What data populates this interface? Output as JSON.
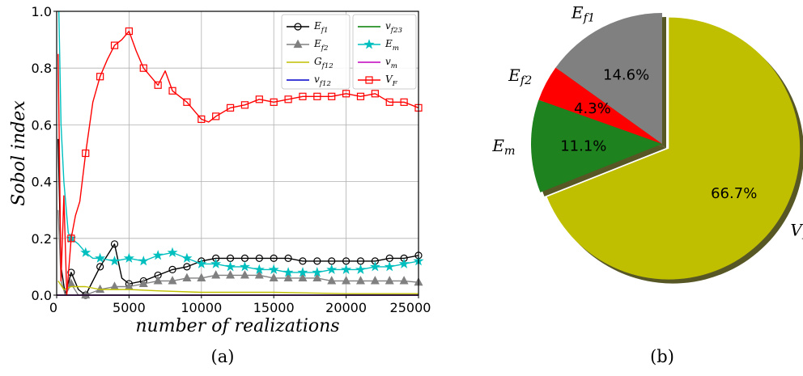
{
  "chart_data": [
    {
      "type": "line",
      "subtitle": "(a)",
      "xlabel": "number of realizations",
      "ylabel": "Sobol index",
      "xlim": [
        0,
        25000
      ],
      "ylim": [
        0,
        1
      ],
      "xticks": [
        "0",
        "5000",
        "10000",
        "15000",
        "20000",
        "25000"
      ],
      "yticks": [
        "0.0",
        "0.2",
        "0.4",
        "0.6",
        "0.8",
        "1.0"
      ],
      "grid": true,
      "legend_position": "top-right",
      "series": [
        {
          "name": "E_f1",
          "label_main": "E",
          "label_sub": "f1",
          "color": "#000000",
          "marker": "circle",
          "x": [
            100,
            300,
            600,
            1000,
            1500,
            2000,
            3000,
            3500,
            4000,
            4500,
            5000,
            6000,
            7000,
            8000,
            9000,
            10000,
            11000,
            12000,
            13000,
            14000,
            15000,
            16000,
            17000,
            18000,
            19000,
            20000,
            21000,
            22000,
            23000,
            24000,
            25000
          ],
          "y": [
            0.55,
            0.1,
            0.0,
            0.08,
            0.02,
            0.0,
            0.1,
            0.14,
            0.18,
            0.06,
            0.04,
            0.05,
            0.07,
            0.09,
            0.1,
            0.12,
            0.13,
            0.13,
            0.13,
            0.13,
            0.13,
            0.13,
            0.12,
            0.12,
            0.12,
            0.12,
            0.12,
            0.12,
            0.13,
            0.13,
            0.14
          ]
        },
        {
          "name": "E_f2",
          "label_main": "E",
          "label_sub": "f2",
          "color": "#808080",
          "marker": "triangle",
          "x": [
            100,
            300,
            600,
            1000,
            1500,
            2000,
            3000,
            4000,
            5000,
            6000,
            7000,
            8000,
            9000,
            10000,
            11000,
            12000,
            13000,
            14000,
            15000,
            16000,
            17000,
            18000,
            19000,
            20000,
            21000,
            22000,
            23000,
            24000,
            25000
          ],
          "y": [
            0.3,
            0.05,
            0.0,
            0.04,
            0.0,
            0.0,
            0.02,
            0.03,
            0.03,
            0.04,
            0.05,
            0.05,
            0.06,
            0.06,
            0.07,
            0.07,
            0.07,
            0.07,
            0.06,
            0.06,
            0.06,
            0.06,
            0.05,
            0.05,
            0.05,
            0.05,
            0.05,
            0.05,
            0.045
          ]
        },
        {
          "name": "G_f12",
          "label_main": "G",
          "label_sub": "f12",
          "color": "#bfbf00",
          "marker": "none",
          "x": [
            100,
            500,
            1000,
            2000,
            3000,
            4000,
            5000,
            7000,
            10000,
            15000,
            20000,
            25000
          ],
          "y": [
            0.05,
            0.02,
            0.03,
            0.03,
            0.02,
            0.02,
            0.02,
            0.015,
            0.01,
            0.01,
            0.005,
            0.005
          ]
        },
        {
          "name": "v_f12",
          "label_main": "v",
          "label_sub": "f12",
          "color": "#0000cc",
          "marker": "none",
          "x": [
            0,
            25000
          ],
          "y": [
            0.0,
            0.0
          ]
        },
        {
          "name": "v_f23",
          "label_main": "v",
          "label_sub": "f23",
          "color": "#007f00",
          "marker": "none",
          "x": [
            0,
            25000
          ],
          "y": [
            0.0,
            0.0
          ]
        },
        {
          "name": "E_m",
          "label_main": "E",
          "label_sub": "m",
          "color": "#00bfbf",
          "marker": "star",
          "x": [
            150,
            300,
            500,
            800,
            1000,
            1500,
            2000,
            2500,
            3000,
            4000,
            5000,
            6000,
            7000,
            8000,
            9000,
            10000,
            11000,
            12000,
            13000,
            14000,
            15000,
            16000,
            17000,
            18000,
            19000,
            20000,
            21000,
            22000,
            23000,
            24000,
            25000
          ],
          "y": [
            1.0,
            0.6,
            0.4,
            0.22,
            0.2,
            0.18,
            0.15,
            0.13,
            0.13,
            0.12,
            0.13,
            0.12,
            0.14,
            0.15,
            0.13,
            0.11,
            0.11,
            0.1,
            0.1,
            0.09,
            0.09,
            0.08,
            0.08,
            0.08,
            0.09,
            0.09,
            0.09,
            0.1,
            0.1,
            0.11,
            0.12
          ]
        },
        {
          "name": "v_m",
          "label_main": "v",
          "label_sub": "m",
          "color": "#bf00bf",
          "marker": "none",
          "x": [
            0,
            25000
          ],
          "y": [
            0.0,
            0.0
          ]
        },
        {
          "name": "V_F",
          "label_main": "V",
          "label_sub": "F",
          "color": "#ff0000",
          "marker": "square",
          "x": [
            100,
            300,
            500,
            700,
            1000,
            1300,
            1600,
            2000,
            2500,
            3000,
            3500,
            4000,
            4500,
            5000,
            5500,
            6000,
            7000,
            7500,
            8000,
            9000,
            10000,
            10500,
            11000,
            12000,
            13000,
            14000,
            15000,
            16000,
            17000,
            18000,
            19000,
            20000,
            21000,
            22000,
            23000,
            24000,
            25000
          ],
          "y": [
            0.85,
            0.05,
            0.35,
            0.0,
            0.2,
            0.28,
            0.33,
            0.5,
            0.68,
            0.77,
            0.83,
            0.88,
            0.9,
            0.93,
            0.86,
            0.8,
            0.74,
            0.79,
            0.72,
            0.68,
            0.62,
            0.61,
            0.63,
            0.66,
            0.67,
            0.69,
            0.68,
            0.69,
            0.7,
            0.7,
            0.7,
            0.71,
            0.7,
            0.71,
            0.68,
            0.68,
            0.66
          ]
        }
      ]
    },
    {
      "type": "pie",
      "subtitle": "(b)",
      "slices": [
        {
          "label_main": "E",
          "label_sub": "f1",
          "value": 14.6,
          "pct_label": "14.6%",
          "color": "#808080",
          "explode": false
        },
        {
          "label_main": "E",
          "label_sub": "f2",
          "value": 4.3,
          "pct_label": "4.3%",
          "color": "#ff0000",
          "explode": false
        },
        {
          "label_main": "E",
          "label_sub": "m",
          "value": 11.1,
          "pct_label": "11.1%",
          "color": "#1e821e",
          "explode": false
        },
        {
          "label_main": "V",
          "label_sub": "F",
          "value": 66.7,
          "pct_label": "66.7%",
          "color": "#bfbf00",
          "explode": true
        }
      ]
    }
  ]
}
